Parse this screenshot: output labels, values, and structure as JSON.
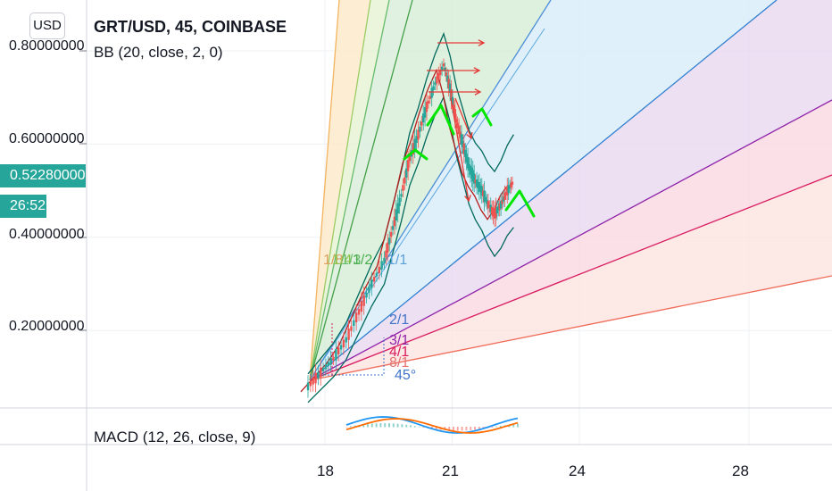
{
  "header": {
    "currency_button": "USD",
    "title": "GRT/USD, 45, COINBASE",
    "indicator": "BB (20, close, 2, 0)",
    "macd_label": "MACD (12, 26, close, 9)"
  },
  "price_axis": {
    "ticks": [
      "0.80000000",
      "0.60000000",
      "0.40000000",
      "0.20000000"
    ],
    "current_price": "0.52280000",
    "countdown": "26:52"
  },
  "time_axis": {
    "ticks": [
      "18",
      "21",
      "24",
      "28"
    ]
  },
  "colors": {
    "up": "#26a69a",
    "down": "#ef5350",
    "bb_basis": "#b71c1c",
    "bb_band": "#00695c",
    "annotation_green": "#00e600",
    "annotation_red": "#e53935",
    "macd_line": "#2196f3",
    "signal_line": "#ff6d00"
  },
  "gann_fan": {
    "labels": [
      "1/8",
      "1/4",
      "1/3",
      "1/2",
      "1/1",
      "2/1",
      "3/1",
      "4/1",
      "8/1",
      "45°"
    ]
  },
  "chart_data": {
    "type": "line",
    "title": "GRT/USD, 45, COINBASE",
    "x_ticks": [
      "18",
      "21",
      "24",
      "28"
    ],
    "ylim": [
      0.02,
      0.88
    ],
    "grid": true,
    "series": [
      {
        "name": "GRT/USD",
        "x": [
          17.6,
          17.9,
          18.2,
          18.5,
          18.8,
          19.1,
          19.4,
          19.6,
          19.8,
          20.0,
          20.2,
          20.4,
          20.6,
          20.8,
          20.95,
          21.1,
          21.25,
          21.4,
          21.55,
          21.7,
          21.85,
          22.0,
          22.15,
          22.3,
          22.45
        ],
        "values": [
          0.08,
          0.11,
          0.14,
          0.18,
          0.24,
          0.3,
          0.35,
          0.42,
          0.49,
          0.57,
          0.62,
          0.68,
          0.73,
          0.77,
          0.72,
          0.65,
          0.6,
          0.55,
          0.52,
          0.5,
          0.47,
          0.45,
          0.47,
          0.5,
          0.52
        ]
      }
    ]
  }
}
